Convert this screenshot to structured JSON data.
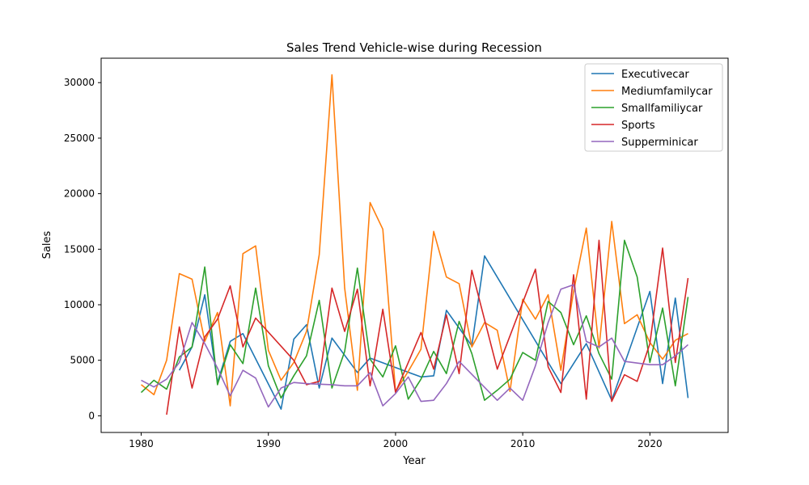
{
  "chart_data": {
    "type": "line",
    "title": "Sales Trend Vehicle-wise during Recession",
    "xlabel": "Year",
    "ylabel": "Sales",
    "xlim": [
      1976.85,
      2026.15
    ],
    "ylim": [
      -1500,
      32200
    ],
    "xticks": [
      1980,
      1990,
      2000,
      2010,
      2020
    ],
    "yticks": [
      0,
      5000,
      10000,
      15000,
      20000,
      25000,
      30000
    ],
    "grid": false,
    "legend": "top-right",
    "series": [
      {
        "name": "Executivecar",
        "color": "#1f77b4",
        "points": [
          [
            1983,
            4100
          ],
          [
            1984,
            6200
          ],
          [
            1985,
            10900
          ],
          [
            1986,
            3000
          ],
          [
            1987,
            6700
          ],
          [
            1988,
            7400
          ],
          [
            1991,
            600
          ],
          [
            1992,
            6900
          ],
          [
            1993,
            8200
          ],
          [
            1994,
            2500
          ],
          [
            1995,
            7000
          ],
          [
            1997,
            3900
          ],
          [
            1998,
            5200
          ],
          [
            2002,
            3500
          ],
          [
            2003,
            3600
          ],
          [
            2004,
            9500
          ],
          [
            2006,
            6300
          ],
          [
            2007,
            14400
          ],
          [
            2013,
            2900
          ],
          [
            2015,
            6500
          ],
          [
            2017,
            1400
          ],
          [
            2020,
            11200
          ],
          [
            2021,
            2900
          ],
          [
            2022,
            10600
          ],
          [
            2023,
            1600
          ]
        ]
      },
      {
        "name": "Mediumfamilycar",
        "color": "#ff7f0e",
        "points": [
          [
            1980,
            2800
          ],
          [
            1981,
            1900
          ],
          [
            1982,
            5000
          ],
          [
            1983,
            12800
          ],
          [
            1984,
            12300
          ],
          [
            1985,
            6700
          ],
          [
            1986,
            9300
          ],
          [
            1987,
            900
          ],
          [
            1988,
            14600
          ],
          [
            1989,
            15300
          ],
          [
            1990,
            5900
          ],
          [
            1991,
            3200
          ],
          [
            1992,
            4800
          ],
          [
            1993,
            7600
          ],
          [
            1994,
            14500
          ],
          [
            1995,
            30700
          ],
          [
            1996,
            11500
          ],
          [
            1997,
            2300
          ],
          [
            1998,
            19200
          ],
          [
            1999,
            16800
          ],
          [
            2000,
            2200
          ],
          [
            2001,
            4000
          ],
          [
            2002,
            6000
          ],
          [
            2003,
            16600
          ],
          [
            2004,
            12500
          ],
          [
            2005,
            11900
          ],
          [
            2006,
            6200
          ],
          [
            2007,
            8400
          ],
          [
            2008,
            7700
          ],
          [
            2009,
            2200
          ],
          [
            2010,
            10500
          ],
          [
            2011,
            8700
          ],
          [
            2012,
            10900
          ],
          [
            2013,
            4100
          ],
          [
            2014,
            11200
          ],
          [
            2015,
            16900
          ],
          [
            2016,
            6100
          ],
          [
            2017,
            17500
          ],
          [
            2018,
            8300
          ],
          [
            2019,
            9100
          ],
          [
            2020,
            6600
          ],
          [
            2021,
            5100
          ],
          [
            2022,
            6800
          ],
          [
            2023,
            7400
          ]
        ]
      },
      {
        "name": "Smallfamiliycar",
        "color": "#2ca02c",
        "points": [
          [
            1980,
            2100
          ],
          [
            1981,
            3200
          ],
          [
            1982,
            2400
          ],
          [
            1983,
            5300
          ],
          [
            1984,
            6200
          ],
          [
            1985,
            13400
          ],
          [
            1986,
            2800
          ],
          [
            1987,
            6400
          ],
          [
            1988,
            4700
          ],
          [
            1989,
            11500
          ],
          [
            1990,
            4500
          ],
          [
            1991,
            1600
          ],
          [
            1992,
            3600
          ],
          [
            1993,
            5400
          ],
          [
            1994,
            10400
          ],
          [
            1995,
            2500
          ],
          [
            1996,
            5800
          ],
          [
            1997,
            13300
          ],
          [
            1998,
            5100
          ],
          [
            1999,
            3500
          ],
          [
            2000,
            6300
          ],
          [
            2001,
            1500
          ],
          [
            2002,
            3300
          ],
          [
            2003,
            5800
          ],
          [
            2004,
            3800
          ],
          [
            2005,
            8500
          ],
          [
            2006,
            5600
          ],
          [
            2007,
            1400
          ],
          [
            2008,
            2300
          ],
          [
            2009,
            3300
          ],
          [
            2010,
            5700
          ],
          [
            2011,
            5000
          ],
          [
            2012,
            10300
          ],
          [
            2013,
            9300
          ],
          [
            2014,
            6400
          ],
          [
            2015,
            9000
          ],
          [
            2016,
            5600
          ],
          [
            2017,
            3300
          ],
          [
            2018,
            15800
          ],
          [
            2019,
            12500
          ],
          [
            2020,
            4800
          ],
          [
            2021,
            9700
          ],
          [
            2022,
            2700
          ],
          [
            2023,
            10700
          ]
        ]
      },
      {
        "name": "Sports",
        "color": "#d62728",
        "points": [
          [
            1982,
            100
          ],
          [
            1983,
            8000
          ],
          [
            1984,
            2500
          ],
          [
            1985,
            7100
          ],
          [
            1986,
            8700
          ],
          [
            1987,
            11700
          ],
          [
            1988,
            6200
          ],
          [
            1989,
            8800
          ],
          [
            1992,
            5000
          ],
          [
            1993,
            2800
          ],
          [
            1994,
            3100
          ],
          [
            1995,
            11500
          ],
          [
            1996,
            7600
          ],
          [
            1997,
            11400
          ],
          [
            1998,
            2700
          ],
          [
            1999,
            9600
          ],
          [
            2000,
            2100
          ],
          [
            2002,
            7500
          ],
          [
            2003,
            4200
          ],
          [
            2004,
            9100
          ],
          [
            2005,
            3800
          ],
          [
            2006,
            13100
          ],
          [
            2008,
            4200
          ],
          [
            2011,
            13200
          ],
          [
            2012,
            4400
          ],
          [
            2013,
            2100
          ],
          [
            2014,
            12700
          ],
          [
            2015,
            1500
          ],
          [
            2016,
            15800
          ],
          [
            2017,
            1300
          ],
          [
            2018,
            3700
          ],
          [
            2019,
            3100
          ],
          [
            2020,
            6500
          ],
          [
            2021,
            15100
          ],
          [
            2022,
            4800
          ],
          [
            2023,
            12400
          ]
        ]
      },
      {
        "name": "Supperminicar",
        "color": "#9467bd",
        "points": [
          [
            1980,
            3200
          ],
          [
            1981,
            2600
          ],
          [
            1982,
            3300
          ],
          [
            1983,
            4800
          ],
          [
            1984,
            8400
          ],
          [
            1985,
            6500
          ],
          [
            1986,
            4300
          ],
          [
            1987,
            1800
          ],
          [
            1988,
            4100
          ],
          [
            1989,
            3400
          ],
          [
            1990,
            800
          ],
          [
            1991,
            2500
          ],
          [
            1992,
            3000
          ],
          [
            1993,
            2900
          ],
          [
            1995,
            2800
          ],
          [
            1996,
            2700
          ],
          [
            1997,
            2700
          ],
          [
            1998,
            3900
          ],
          [
            1999,
            900
          ],
          [
            2000,
            2000
          ],
          [
            2001,
            3500
          ],
          [
            2002,
            1300
          ],
          [
            2003,
            1400
          ],
          [
            2004,
            2900
          ],
          [
            2005,
            4900
          ],
          [
            2008,
            1400
          ],
          [
            2009,
            2500
          ],
          [
            2010,
            1400
          ],
          [
            2011,
            4500
          ],
          [
            2012,
            8400
          ],
          [
            2013,
            11400
          ],
          [
            2014,
            11800
          ],
          [
            2015,
            6700
          ],
          [
            2016,
            6200
          ],
          [
            2017,
            7000
          ],
          [
            2018,
            4900
          ],
          [
            2020,
            4600
          ],
          [
            2021,
            4600
          ],
          [
            2022,
            5400
          ],
          [
            2023,
            6400
          ]
        ]
      }
    ]
  }
}
